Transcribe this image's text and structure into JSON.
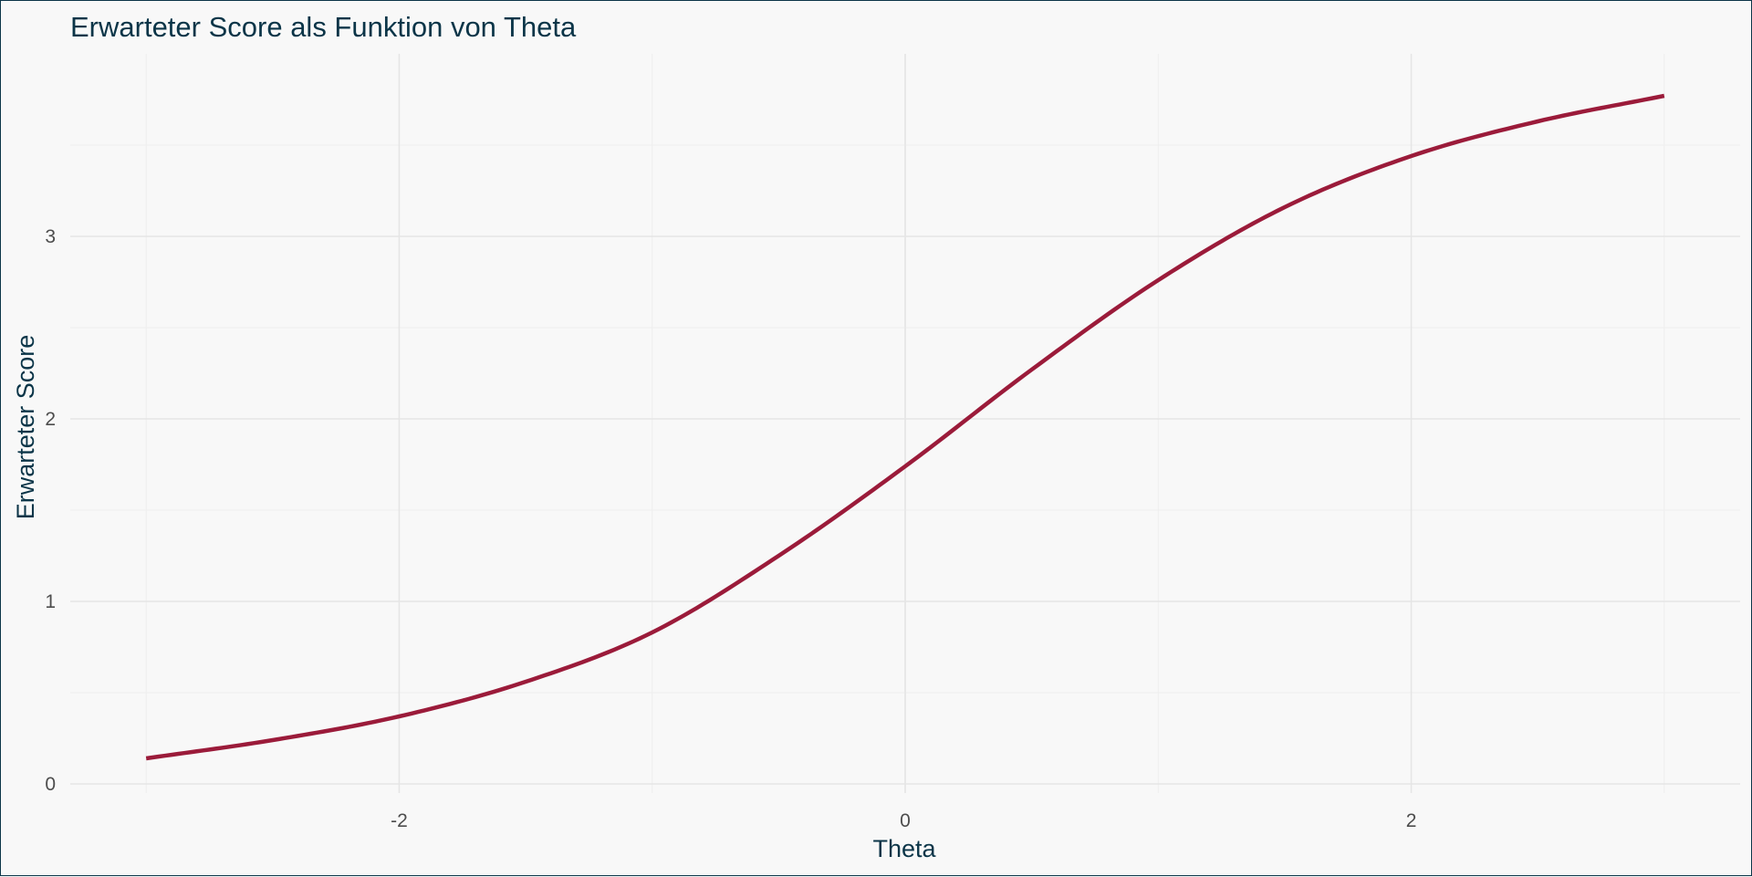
{
  "chart_data": {
    "type": "line",
    "title": "Erwarteter Score als Funktion von Theta",
    "xlabel": "Theta",
    "ylabel": "Erwarteter Score",
    "xlim": [
      -3.3,
      3.3
    ],
    "ylim": [
      -0.05,
      4.0
    ],
    "x_ticks": [
      -2,
      0,
      2
    ],
    "x_tick_labels": [
      "-2",
      "0",
      "2"
    ],
    "y_ticks": [
      0,
      1,
      2,
      3
    ],
    "y_tick_labels": [
      "0",
      "1",
      "2",
      "3"
    ],
    "x_minor_ticks": [
      -3,
      -1,
      1,
      3
    ],
    "y_minor_ticks": [
      0.5,
      1.5,
      2.5,
      3.5
    ],
    "grid": true,
    "legend": "none",
    "series": [
      {
        "color": "#9b1b3a",
        "x": [
          -3.0,
          -2.5,
          -2.0,
          -1.5,
          -1.0,
          -0.5,
          0.0,
          0.5,
          1.0,
          1.5,
          2.0,
          2.5,
          3.0
        ],
        "y": [
          0.14,
          0.24,
          0.37,
          0.56,
          0.83,
          1.25,
          1.74,
          2.27,
          2.76,
          3.16,
          3.44,
          3.63,
          3.77
        ]
      }
    ]
  }
}
